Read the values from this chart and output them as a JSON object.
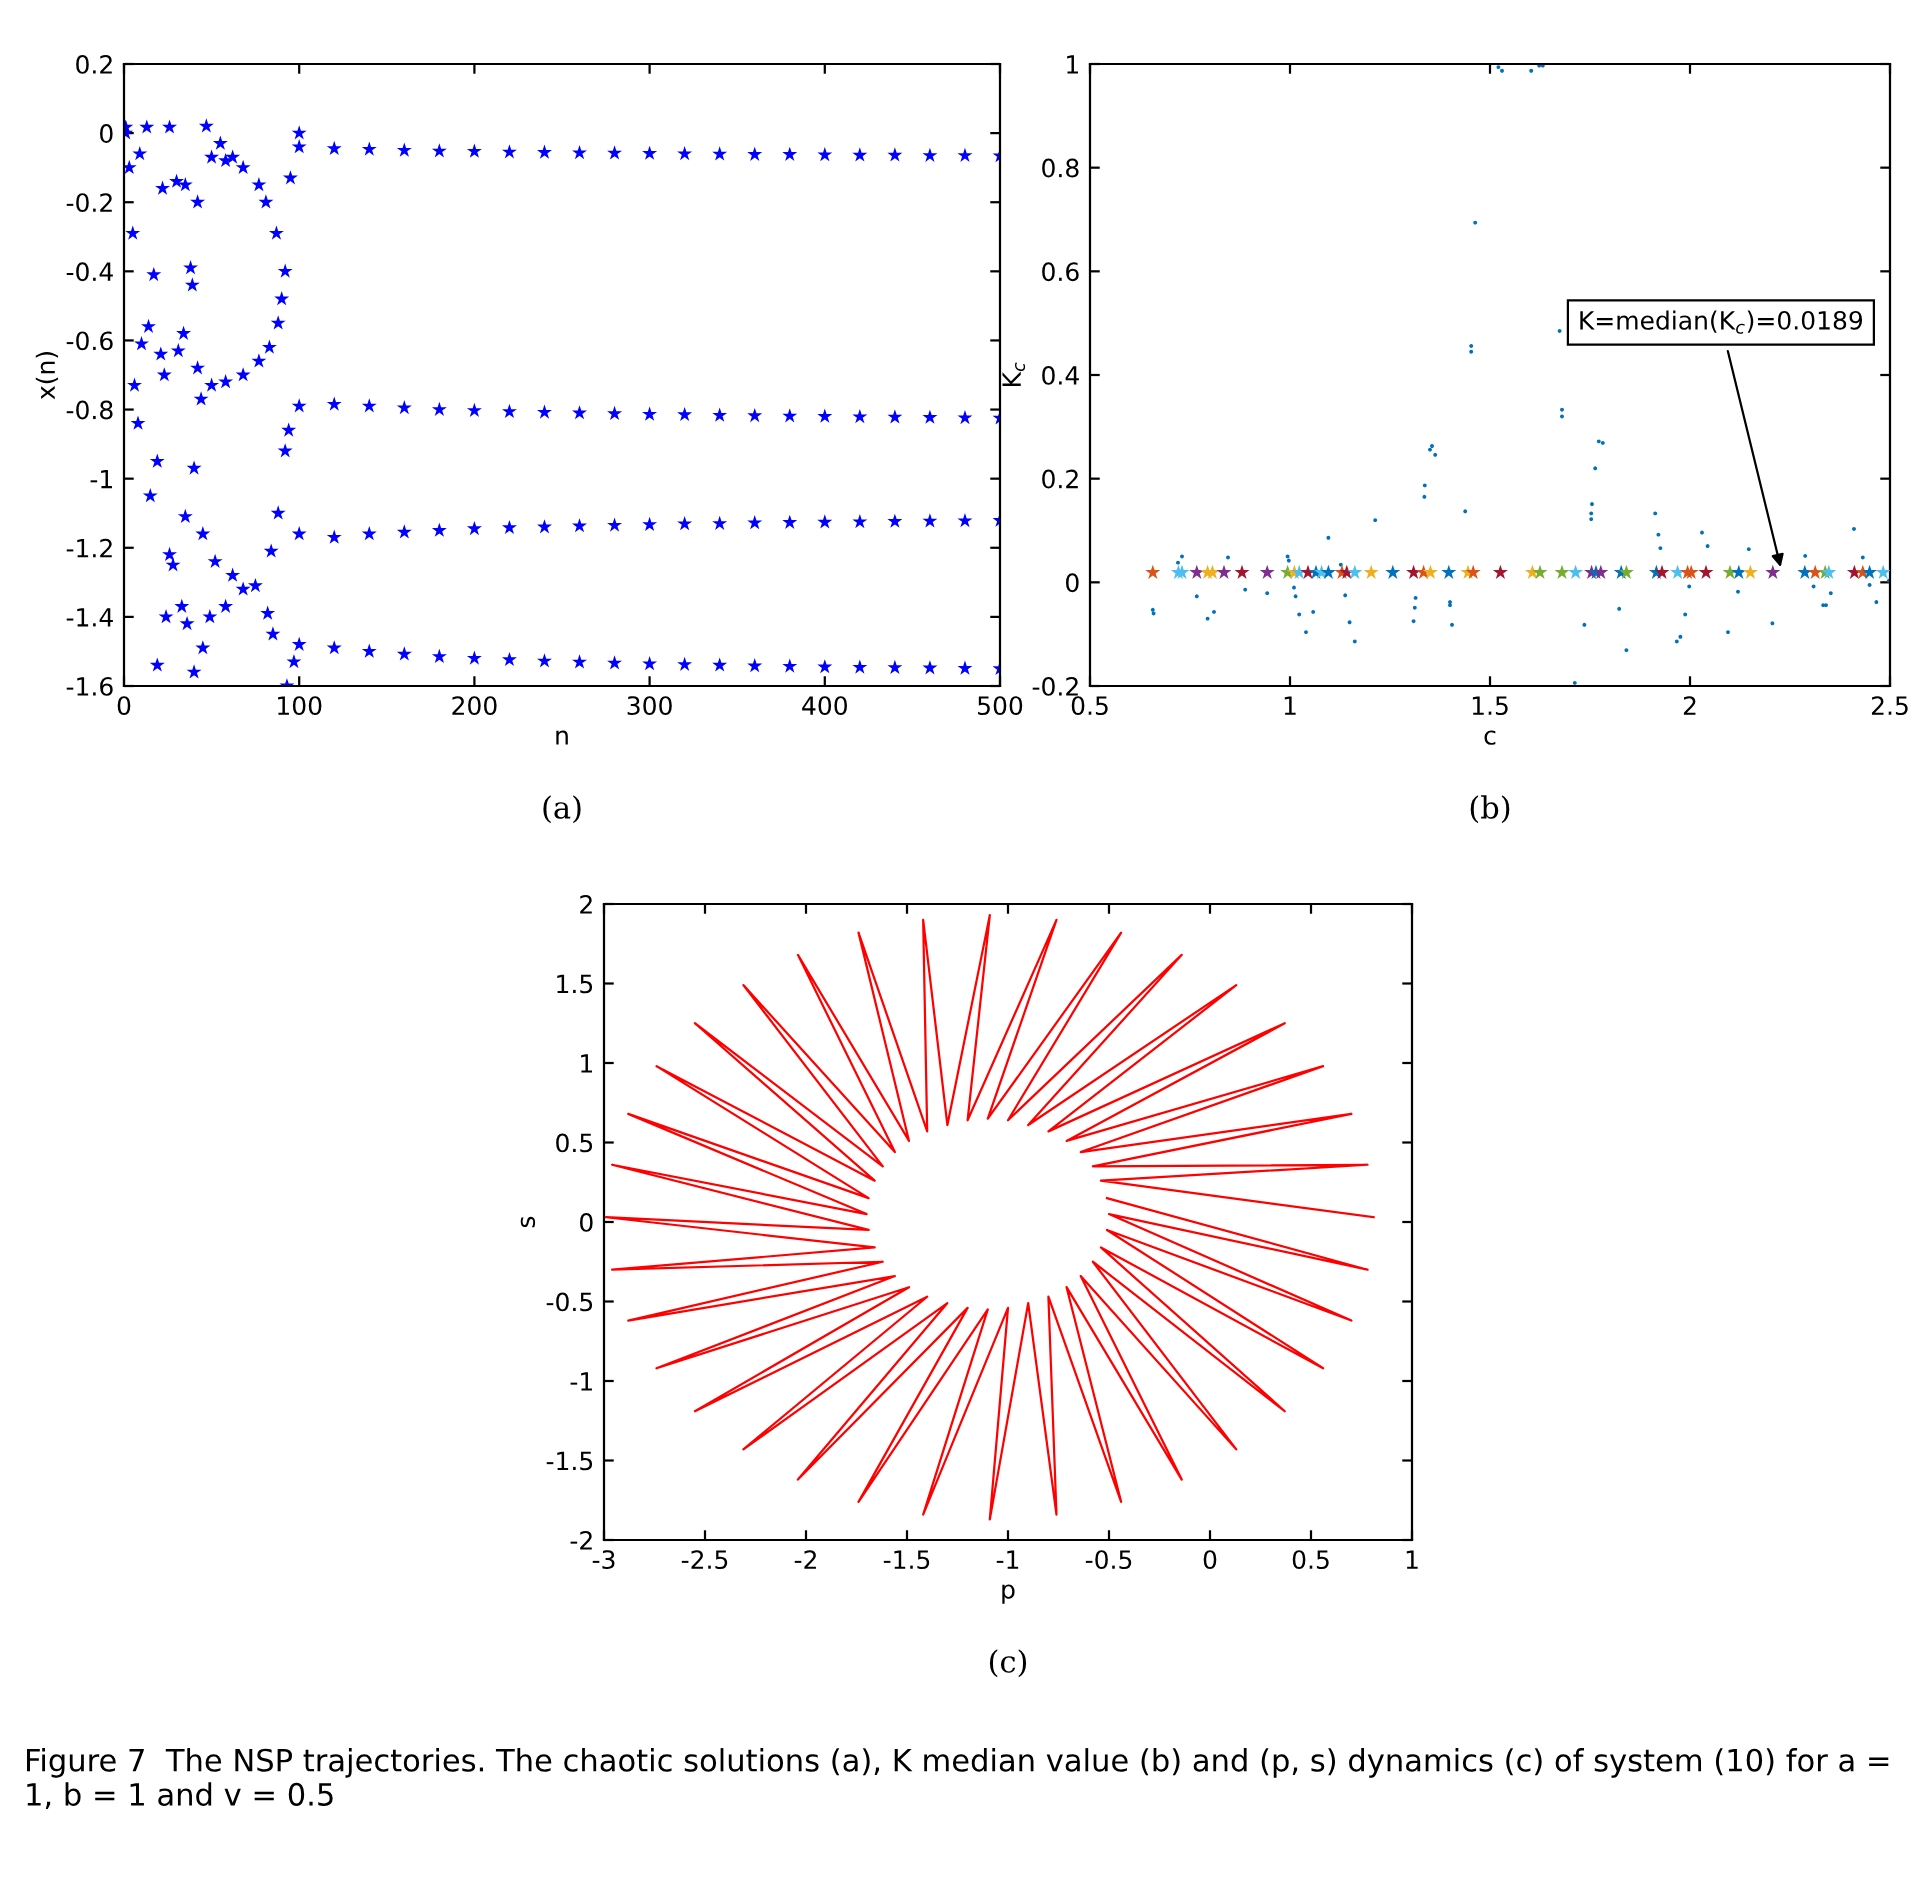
{
  "chart_data": [
    {
      "type": "scatter",
      "xlabel": "n",
      "ylabel": "x(n)",
      "xlim": [
        0,
        500
      ],
      "ylim": [
        -1.6,
        0.2
      ],
      "xticks": [
        0,
        100,
        200,
        300,
        400,
        500
      ],
      "yticks": [
        -1.6,
        -1.4,
        -1.2,
        -1,
        -0.8,
        -0.6,
        -0.4,
        -0.2,
        0,
        0.2
      ],
      "grid": false,
      "marker": "star",
      "annotations": [
        "(a)"
      ],
      "series": [
        {
          "color": "#0000ff",
          "x": [
            1,
            1,
            3,
            5,
            6,
            8,
            9,
            10,
            13,
            14,
            15,
            17,
            19,
            19,
            21,
            22,
            23,
            24,
            26,
            26,
            28,
            30,
            31,
            33,
            34,
            35,
            35,
            36,
            38,
            39,
            40,
            40,
            42,
            42,
            45,
            45,
            44,
            47,
            49,
            50,
            52,
            55,
            58,
            58,
            62,
            62,
            68,
            68,
            75,
            77,
            81,
            82,
            84,
            85,
            87,
            88,
            88,
            90,
            92,
            92,
            93,
            94,
            95,
            97,
            100,
            50,
            58,
            68,
            77,
            83
          ],
          "values": [
            0.017,
            0,
            -0.1,
            -0.29,
            -0.73,
            -0.84,
            -0.06,
            -0.61,
            0.017,
            -0.56,
            -1.05,
            -0.41,
            -0.95,
            -1.54,
            -0.64,
            -0.16,
            -0.7,
            -1.4,
            0.017,
            -1.22,
            -1.25,
            -0.14,
            -0.63,
            -1.37,
            -0.58,
            -0.15,
            -1.11,
            -1.42,
            -0.39,
            -0.44,
            -0.97,
            -1.56,
            -0.2,
            -0.68,
            -1.49,
            -1.16,
            -0.77,
            0.02,
            -1.4,
            -0.07,
            -1.24,
            -0.03,
            -0.08,
            -1.37,
            -0.07,
            -1.28,
            -1.32,
            -0.1,
            -1.31,
            -0.15,
            -0.2,
            -1.39,
            -1.21,
            -1.45,
            -0.29,
            -0.55,
            -1.1,
            -0.48,
            -0.4,
            -0.92,
            -1.6,
            -0.86,
            -0.13,
            -1.53,
            0,
            -0.73,
            -0.72,
            -0.7,
            -0.66,
            -0.62
          ]
        },
        {
          "color": "#0000ff",
          "x": [
            100,
            120,
            140,
            160,
            180,
            200,
            220,
            240,
            260,
            280,
            300,
            320,
            340,
            360,
            380,
            400,
            420,
            440,
            460,
            480,
            500
          ],
          "values": [
            -0.04,
            -0.045,
            -0.047,
            -0.05,
            -0.052,
            -0.053,
            -0.055,
            -0.056,
            -0.057,
            -0.058,
            -0.059,
            -0.06,
            -0.061,
            -0.062,
            -0.062,
            -0.063,
            -0.064,
            -0.064,
            -0.065,
            -0.065,
            -0.066
          ]
        },
        {
          "color": "#0000ff",
          "x": [
            100,
            120,
            140,
            160,
            180,
            200,
            220,
            240,
            260,
            280,
            300,
            320,
            340,
            360,
            380,
            400,
            420,
            440,
            460,
            480,
            500
          ],
          "values": [
            -0.79,
            -0.785,
            -0.79,
            -0.795,
            -0.8,
            -0.803,
            -0.806,
            -0.808,
            -0.81,
            -0.812,
            -0.814,
            -0.815,
            -0.817,
            -0.818,
            -0.819,
            -0.82,
            -0.821,
            -0.822,
            -0.823,
            -0.824,
            -0.825
          ]
        },
        {
          "color": "#0000ff",
          "x": [
            100,
            120,
            140,
            160,
            180,
            200,
            220,
            240,
            260,
            280,
            300,
            320,
            340,
            360,
            380,
            400,
            420,
            440,
            460,
            480,
            500
          ],
          "values": [
            -1.16,
            -1.17,
            -1.16,
            -1.155,
            -1.15,
            -1.145,
            -1.142,
            -1.14,
            -1.137,
            -1.135,
            -1.133,
            -1.131,
            -1.13,
            -1.128,
            -1.127,
            -1.126,
            -1.125,
            -1.124,
            -1.123,
            -1.122,
            -1.121
          ]
        },
        {
          "color": "#0000ff",
          "x": [
            100,
            120,
            140,
            160,
            180,
            200,
            220,
            240,
            260,
            280,
            300,
            320,
            340,
            360,
            380,
            400,
            420,
            440,
            460,
            480,
            500
          ],
          "values": [
            -1.48,
            -1.49,
            -1.5,
            -1.508,
            -1.515,
            -1.52,
            -1.524,
            -1.528,
            -1.531,
            -1.534,
            -1.536,
            -1.538,
            -1.54,
            -1.542,
            -1.543,
            -1.545,
            -1.546,
            -1.547,
            -1.548,
            -1.549,
            -1.55
          ]
        }
      ]
    },
    {
      "type": "scatter",
      "xlabel": "c",
      "ylabel": "K$_{c}$",
      "xlim": [
        0.5,
        2.5
      ],
      "ylim": [
        -0.2,
        1
      ],
      "xticks": [
        0.5,
        1,
        1.5,
        2,
        2.5
      ],
      "yticks": [
        -0.2,
        0,
        0.2,
        0.4,
        0.6,
        0.8,
        1
      ],
      "grid": false,
      "annotations": [
        "(b)",
        {
          "text": "K=median(K$_{c}$)=0.0189",
          "x": 2.23,
          "y": 0.0189
        }
      ],
      "series": [
        {
          "marker": "circle",
          "color": "#0072bd",
          "x": [
            0.657,
            0.659,
            0.72,
            0.73,
            0.767,
            0.794,
            0.81,
            0.845,
            0.888,
            0.943,
            0.994,
            0.997,
            1.01,
            1.014,
            1.023,
            1.04,
            1.058,
            1.096,
            1.127,
            1.138,
            1.149,
            1.162,
            1.213,
            1.309,
            1.312,
            1.314,
            1.336,
            1.337,
            1.35,
            1.355,
            1.363,
            1.4,
            1.4,
            1.405,
            1.438,
            1.453,
            1.453,
            1.463,
            1.521,
            1.53,
            1.603,
            1.623,
            1.632,
            1.674,
            1.68,
            1.68,
            1.712,
            1.736,
            1.753,
            1.753,
            1.755,
            1.763,
            1.772,
            1.782,
            1.823,
            1.841,
            1.913,
            1.921,
            1.926,
            1.967,
            1.976,
            1.988,
            1.998,
            2.03,
            2.044,
            2.095,
            2.12,
            2.147,
            2.206,
            2.288,
            2.309,
            2.333,
            2.34,
            2.352,
            2.41,
            2.432,
            2.449,
            2.466,
            2.497
          ],
          "values": [
            -0.053,
            -0.06,
            0.038,
            0.05,
            -0.027,
            -0.07,
            -0.057,
            0.048,
            -0.014,
            -0.021,
            0.05,
            0.042,
            -0.01,
            -0.027,
            -0.062,
            -0.096,
            -0.057,
            0.086,
            0.034,
            -0.025,
            -0.077,
            -0.114,
            0.12,
            -0.075,
            -0.049,
            -0.03,
            0.165,
            0.187,
            0.256,
            0.263,
            0.246,
            -0.038,
            -0.044,
            -0.082,
            0.137,
            0.456,
            0.445,
            0.694,
            0.994,
            0.987,
            0.987,
            0.997,
            0.997,
            0.485,
            0.333,
            0.32,
            -0.194,
            -0.082,
            0.122,
            0.133,
            0.151,
            0.22,
            0.272,
            0.269,
            -0.051,
            -0.131,
            0.133,
            0.092,
            0.066,
            -0.114,
            -0.105,
            -0.062,
            -0.008,
            0.096,
            0.07,
            -0.096,
            -0.018,
            0.064,
            -0.079,
            0.051,
            -0.008,
            -0.044,
            -0.044,
            -0.021,
            0.103,
            0.048,
            -0.005,
            -0.038,
            0.003
          ]
        },
        {
          "marker": "star",
          "x": [
            0.657,
            0.721,
            0.73,
            0.767,
            0.794,
            0.806,
            0.835,
            0.88,
            0.943,
            0.994,
            1.011,
            1.023,
            1.045,
            1.065,
            1.079,
            1.096,
            1.13,
            1.142,
            1.162,
            1.203,
            1.257,
            1.309,
            1.334,
            1.351,
            1.397,
            1.445,
            1.458,
            1.526,
            1.606,
            1.625,
            1.68,
            1.714,
            1.754,
            1.765,
            1.777,
            1.828,
            1.841,
            1.916,
            1.93,
            1.969,
            1.994,
            2.003,
            2.04,
            2.1,
            2.122,
            2.151,
            2.207,
            2.287,
            2.313,
            2.338,
            2.347,
            2.411,
            2.432,
            2.449,
            2.483
          ],
          "values": [
            0.0189,
            0.0189,
            0.0189,
            0.0189,
            0.0189,
            0.0189,
            0.0189,
            0.0189,
            0.0189,
            0.0189,
            0.0189,
            0.0189,
            0.0189,
            0.0189,
            0.0189,
            0.0189,
            0.0189,
            0.0189,
            0.0189,
            0.0189,
            0.0189,
            0.0189,
            0.0189,
            0.0189,
            0.0189,
            0.0189,
            0.0189,
            0.0189,
            0.0189,
            0.0189,
            0.0189,
            0.0189,
            0.0189,
            0.0189,
            0.0189,
            0.0189,
            0.0189,
            0.0189,
            0.0189,
            0.0189,
            0.0189,
            0.0189,
            0.0189,
            0.0189,
            0.0189,
            0.0189,
            0.0189,
            0.0189,
            0.0189,
            0.0189,
            0.0189,
            0.0189,
            0.0189,
            0.0189,
            0.0189
          ],
          "colors": [
            "#d95319",
            "#4dbeee",
            "#4dbeee",
            "#7e2f8e",
            "#edb120",
            "#edb120",
            "#7e2f8e",
            "#a2142f",
            "#7e2f8e",
            "#77ac30",
            "#edb120",
            "#4dbeee",
            "#a2142f",
            "#0072bd",
            "#4dbeee",
            "#0072bd",
            "#d95319",
            "#a2142f",
            "#4dbeee",
            "#edb120",
            "#0072bd",
            "#a2142f",
            "#d95319",
            "#edb120",
            "#0072bd",
            "#edb120",
            "#d95319",
            "#a2142f",
            "#edb120",
            "#77ac30",
            "#77ac30",
            "#4dbeee",
            "#7e2f8e",
            "#0072bd",
            "#7e2f8e",
            "#0072bd",
            "#77ac30",
            "#0072bd",
            "#a2142f",
            "#4dbeee",
            "#d95319",
            "#d95319",
            "#a2142f",
            "#77ac30",
            "#0072bd",
            "#edb120",
            "#7e2f8e",
            "#0072bd",
            "#d95319",
            "#77ac30",
            "#4dbeee",
            "#a2142f",
            "#d95319",
            "#0072bd",
            "#4dbeee"
          ]
        }
      ]
    },
    {
      "type": "line",
      "xlabel": "p",
      "ylabel": "s",
      "xlim": [
        -3,
        1
      ],
      "ylim": [
        -2,
        2
      ],
      "xticks": [
        -3,
        -2.5,
        -2,
        -1.5,
        -1,
        -0.5,
        0,
        0.5,
        1
      ],
      "yticks": [
        -2,
        -1.5,
        -1,
        -0.5,
        0,
        0.5,
        1,
        1.5,
        2
      ],
      "grid": false,
      "marker": "none",
      "line_style": "solid",
      "annotations": [
        "(c)",
        "Figure 7  The NSP trajectories. The chaotic solutions (a), K median value (b) and (p, s) dynamics (c) of system (10) for a = 1, b = 1 and v = 0.5"
      ],
      "series": [
        {
          "color": "#ff0000",
          "x": [
            0.81,
            -0.54,
            0.78,
            -0.58,
            0.7,
            -0.64,
            0.56,
            -0.71,
            0.37,
            -0.8,
            0.13,
            -0.9,
            -0.14,
            -1.0,
            -0.44,
            -1.1,
            -0.76,
            -1.2,
            -1.09,
            -1.3,
            -1.42,
            -1.4,
            -1.74,
            -1.49,
            -2.04,
            -1.56,
            -2.31,
            -1.62,
            -2.55,
            -1.66,
            -2.74,
            -1.69,
            -2.88,
            -1.7,
            -2.96,
            -1.69,
            -2.99,
            -1.66,
            -2.96,
            -1.62,
            -2.88,
            -1.56,
            -2.74,
            -1.49,
            -2.55,
            -1.4,
            -2.31,
            -1.3,
            -2.04,
            -1.2,
            -1.74,
            -1.1,
            -1.42,
            -1.0,
            -1.09,
            -0.9,
            -0.76,
            -0.8,
            -0.44,
            -0.71,
            -0.14,
            -0.64,
            0.13,
            -0.58,
            0.37,
            -0.54,
            0.56,
            -0.51,
            0.7,
            -0.5,
            0.78,
            -0.51
          ],
          "values": [
            0.03,
            0.26,
            0.36,
            0.35,
            0.68,
            0.44,
            0.98,
            0.51,
            1.25,
            0.57,
            1.49,
            0.61,
            1.68,
            0.64,
            1.82,
            0.65,
            1.9,
            0.64,
            1.93,
            0.61,
            1.9,
            0.57,
            1.82,
            0.51,
            1.68,
            0.44,
            1.49,
            0.35,
            1.25,
            0.26,
            0.98,
            0.15,
            0.68,
            0.05,
            0.36,
            -0.05,
            0.03,
            -0.16,
            -0.3,
            -0.25,
            -0.62,
            -0.34,
            -0.92,
            -0.41,
            -1.19,
            -0.47,
            -1.43,
            -0.51,
            -1.62,
            -0.54,
            -1.76,
            -0.55,
            -1.84,
            -0.54,
            -1.87,
            -0.51,
            -1.84,
            -0.47,
            -1.76,
            -0.41,
            -1.62,
            -0.34,
            -1.43,
            -0.25,
            -1.19,
            -0.16,
            -0.92,
            -0.05,
            -0.62,
            0.05,
            -0.3,
            0.15
          ]
        }
      ]
    }
  ]
}
